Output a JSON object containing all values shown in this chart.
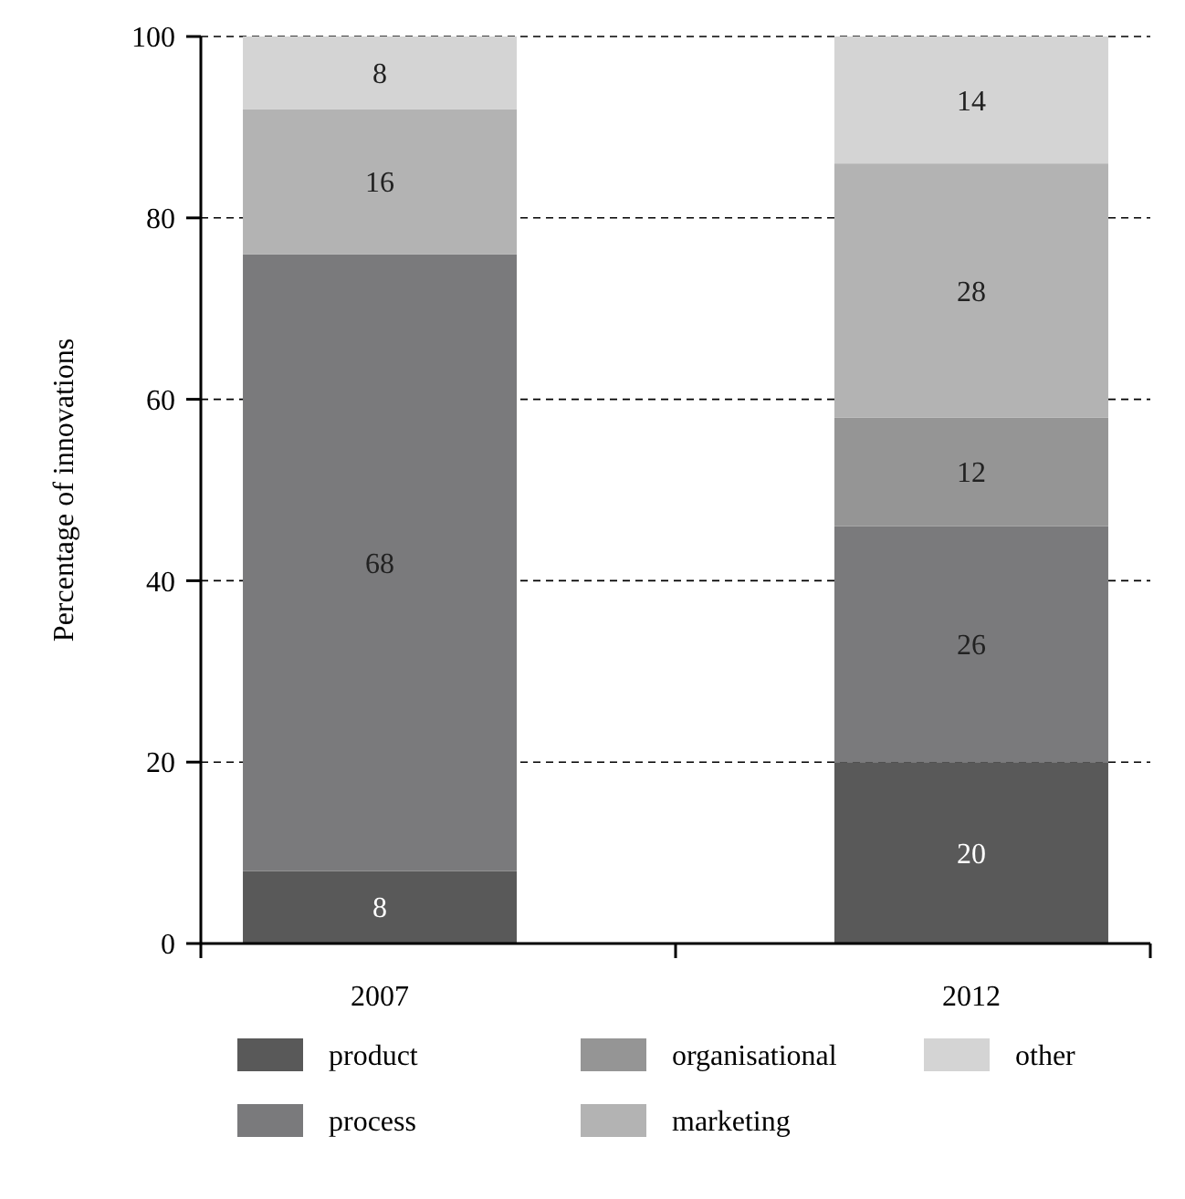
{
  "chart_data": {
    "type": "bar",
    "stacked": true,
    "ylabel": "Percentage of innovations",
    "categories": [
      "2007",
      "2012"
    ],
    "series": [
      {
        "name": "product",
        "color": "#595959",
        "values": [
          8,
          20
        ]
      },
      {
        "name": "process",
        "color": "#7a7a7c",
        "values": [
          68,
          26
        ]
      },
      {
        "name": "organisational",
        "color": "#959595",
        "values": [
          0,
          12
        ],
        "value_labels": [
          null,
          "12"
        ]
      },
      {
        "name": "marketing",
        "color": "#b3b3b3",
        "values": [
          16,
          28
        ]
      },
      {
        "name": "other",
        "color": "#d4d4d4",
        "values": [
          8,
          14
        ]
      }
    ],
    "data_labels": true,
    "ylim": [
      0,
      100
    ],
    "yticks": [
      0,
      20,
      40,
      60,
      80,
      100
    ],
    "grid": "y",
    "legend": "bottom"
  }
}
